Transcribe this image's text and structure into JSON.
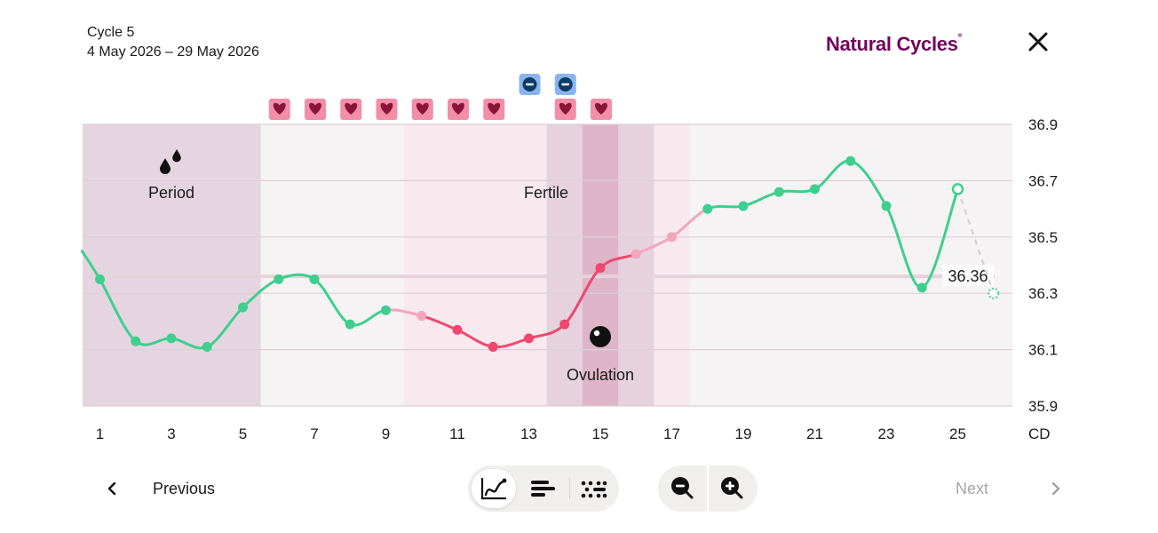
{
  "header": {
    "cycle_title": "Cycle 5",
    "cycle_dates": "4 May 2026 – 29 May 2026",
    "brand_name": "Natural Cycles",
    "brand_mark": "°",
    "close_icon": "close-icon"
  },
  "colors": {
    "brand": "#72035d",
    "green": "#3ecf8e",
    "red": "#ef476f",
    "pink": "#f4a6bd",
    "period_bg": "#e5d5e0",
    "fertile_bg": "#f7e9ee",
    "heart_tag": "#f28ea8",
    "test_tag": "#8ab4f0"
  },
  "chart_data": {
    "type": "line",
    "x_unit": "CD",
    "x_range": [
      1,
      26
    ],
    "ylim": [
      35.9,
      36.9
    ],
    "y_ticks": [
      "36.9",
      "36.7",
      "36.5",
      "36.3",
      "36.1",
      "35.9"
    ],
    "x_ticks": [
      "1",
      "3",
      "5",
      "7",
      "9",
      "11",
      "13",
      "15",
      "17",
      "19",
      "21",
      "23",
      "25",
      "CD"
    ],
    "coverline": 36.36,
    "coverline_label": "36.36",
    "period_days": [
      1,
      5
    ],
    "fertile_window": [
      10,
      17
    ],
    "fertile_core": [
      14,
      16
    ],
    "ovulation_day": 15,
    "period_label": "Period",
    "fertile_label": "Fertile",
    "ovulation_label": "Ovulation",
    "points": [
      {
        "day": 0.5,
        "temp": 36.45,
        "color": "green",
        "hidden": true
      },
      {
        "day": 1,
        "temp": 36.35,
        "color": "green"
      },
      {
        "day": 2,
        "temp": 36.13,
        "color": "green"
      },
      {
        "day": 3,
        "temp": 36.14,
        "color": "green"
      },
      {
        "day": 4,
        "temp": 36.11,
        "color": "green"
      },
      {
        "day": 5,
        "temp": 36.25,
        "color": "green"
      },
      {
        "day": 6,
        "temp": 36.35,
        "color": "green"
      },
      {
        "day": 7,
        "temp": 36.35,
        "color": "green"
      },
      {
        "day": 8,
        "temp": 36.19,
        "color": "green"
      },
      {
        "day": 9,
        "temp": 36.24,
        "color": "green"
      },
      {
        "day": 10,
        "temp": 36.22,
        "color": "pink"
      },
      {
        "day": 11,
        "temp": 36.17,
        "color": "red"
      },
      {
        "day": 12,
        "temp": 36.11,
        "color": "red"
      },
      {
        "day": 13,
        "temp": 36.14,
        "color": "red"
      },
      {
        "day": 14,
        "temp": 36.19,
        "color": "red"
      },
      {
        "day": 15,
        "temp": 36.39,
        "color": "red"
      },
      {
        "day": 16,
        "temp": 36.44,
        "color": "pink"
      },
      {
        "day": 17,
        "temp": 36.5,
        "color": "pink"
      },
      {
        "day": 18,
        "temp": 36.6,
        "color": "green"
      },
      {
        "day": 19,
        "temp": 36.61,
        "color": "green"
      },
      {
        "day": 20,
        "temp": 36.66,
        "color": "green"
      },
      {
        "day": 21,
        "temp": 36.67,
        "color": "green"
      },
      {
        "day": 22,
        "temp": 36.77,
        "color": "green"
      },
      {
        "day": 23,
        "temp": 36.61,
        "color": "green"
      },
      {
        "day": 24,
        "temp": 36.32,
        "color": "green"
      },
      {
        "day": 25,
        "temp": 36.67,
        "color": "green",
        "marker": "open"
      },
      {
        "day": 26,
        "temp": 36.3,
        "color": "green",
        "marker": "dotted"
      }
    ],
    "heart_days": [
      6,
      7,
      8,
      9,
      10,
      11,
      12,
      14,
      15
    ],
    "test_days": [
      13,
      14
    ],
    "heart_icon": "heart-icon",
    "test_icon": "negative-test-icon",
    "period_icon": "drops-icon",
    "ovulation_icon": "ovulation-icon"
  },
  "footer": {
    "previous_label": "Previous",
    "next_label": "Next",
    "prev_icon": "chevron-left-icon",
    "next_icon": "chevron-right-icon",
    "view_icons": [
      "line-graph-icon",
      "bar-list-icon",
      "dot-list-icon"
    ],
    "active_view": "line-graph-icon",
    "zoom_icons": [
      "zoom-out-icon",
      "zoom-in-icon"
    ]
  }
}
